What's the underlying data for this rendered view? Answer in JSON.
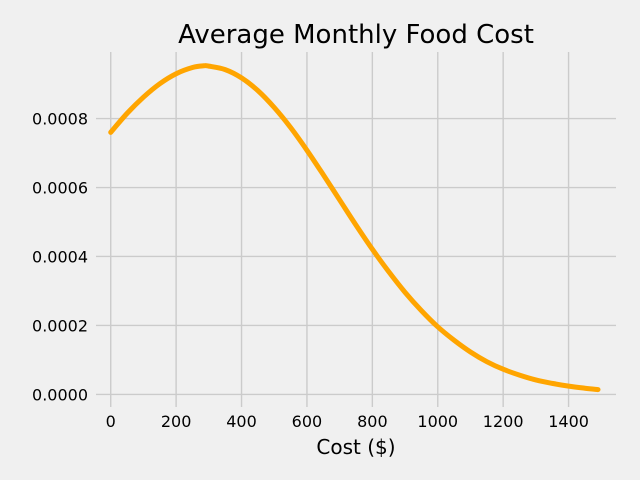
{
  "chart_data": {
    "type": "line",
    "title": "Average Monthly Food Cost",
    "xlabel": "Cost ($)",
    "ylabel": "",
    "xlim": [
      -45,
      1545
    ],
    "ylim": [
      -3.65e-05,
      0.000993
    ],
    "xticks": [
      0,
      200,
      400,
      600,
      800,
      1000,
      1200,
      1400
    ],
    "xtick_labels": [
      "0",
      "200",
      "400",
      "600",
      "800",
      "1000",
      "1200",
      "1400"
    ],
    "yticks": [
      0,
      0.0002,
      0.0004,
      0.0006,
      0.0008
    ],
    "ytick_labels": [
      "0.0000",
      "0.0002",
      "0.0004",
      "0.0006",
      "0.0008"
    ],
    "grid": true,
    "series": [
      {
        "color": "#ffa500",
        "x": [
          0,
          50,
          100,
          150,
          200,
          250,
          285,
          300,
          350,
          400,
          450,
          500,
          550,
          600,
          650,
          700,
          750,
          800,
          850,
          900,
          950,
          1000,
          1050,
          1100,
          1150,
          1200,
          1250,
          1300,
          1350,
          1400,
          1450,
          1490
        ],
        "y": [
          0.00076,
          0.000815,
          0.000862,
          0.000901,
          0.00093,
          0.000948,
          0.000953,
          0.000952,
          0.000942,
          0.000918,
          0.000881,
          0.000832,
          0.000774,
          0.000708,
          0.000637,
          0.000564,
          0.000491,
          0.000421,
          0.000356,
          0.000296,
          0.000243,
          0.000196,
          0.000157,
          0.000123,
          9.5e-05,
          7.3e-05,
          5.6e-05,
          4.2e-05,
          3.2e-05,
          2.4e-05,
          1.8e-05,
          1.4e-05
        ]
      }
    ]
  }
}
